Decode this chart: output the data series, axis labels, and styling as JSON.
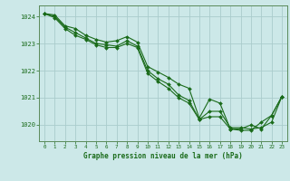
{
  "background_color": "#cce8e8",
  "grid_color": "#aacccc",
  "line_color": "#1a6b1a",
  "marker_color": "#1a6b1a",
  "xlabel": "Graphe pression niveau de la mer (hPa)",
  "xlabel_color": "#1a6b1a",
  "tick_color": "#1a6b1a",
  "spine_color": "#5a8a5a",
  "xlim": [
    -0.5,
    23.5
  ],
  "ylim": [
    1019.4,
    1024.4
  ],
  "yticks": [
    1020,
    1021,
    1022,
    1023,
    1024
  ],
  "xticks": [
    0,
    1,
    2,
    3,
    4,
    5,
    6,
    7,
    8,
    9,
    10,
    11,
    12,
    13,
    14,
    15,
    16,
    17,
    18,
    19,
    20,
    21,
    22,
    23
  ],
  "series": [
    [
      1024.1,
      1024.05,
      1023.65,
      1023.55,
      1023.3,
      1023.15,
      1023.05,
      1023.1,
      1023.25,
      1023.05,
      1022.15,
      1021.95,
      1021.75,
      1021.5,
      1021.35,
      1020.25,
      1020.95,
      1020.8,
      1019.85,
      1019.8,
      1019.8,
      1020.1,
      1020.35,
      1021.05
    ],
    [
      1024.1,
      1024.0,
      1023.6,
      1023.4,
      1023.2,
      1023.0,
      1022.95,
      1022.9,
      1023.1,
      1022.9,
      1022.0,
      1021.7,
      1021.5,
      1021.1,
      1020.9,
      1020.2,
      1020.5,
      1020.5,
      1019.9,
      1019.9,
      1019.85,
      1019.9,
      1020.1,
      1021.05
    ],
    [
      1024.1,
      1023.95,
      1023.55,
      1023.3,
      1023.15,
      1022.95,
      1022.85,
      1022.85,
      1023.0,
      1022.85,
      1021.9,
      1021.6,
      1021.35,
      1021.0,
      1020.8,
      1020.2,
      1020.3,
      1020.3,
      1019.85,
      1019.85,
      1020.0,
      1019.85,
      1020.35,
      1021.05
    ]
  ]
}
